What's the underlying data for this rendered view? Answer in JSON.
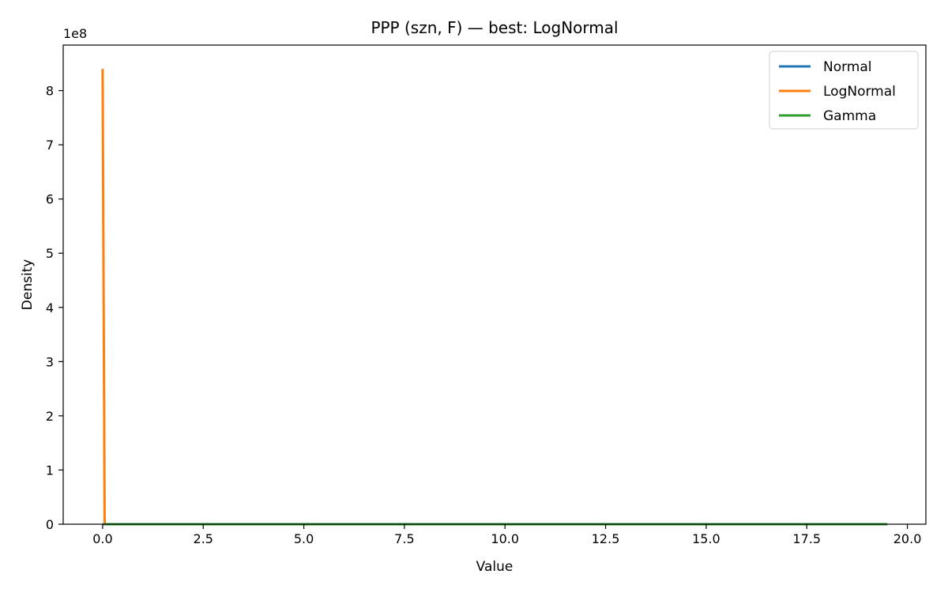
{
  "chart_data": {
    "type": "line",
    "title": "PPP (szn, F) — best: LogNormal",
    "xlabel": "Value",
    "ylabel": "Density",
    "y_offset_text": "1e8",
    "xlim": [
      -0.98,
      20.46
    ],
    "ylim": [
      0,
      884000000
    ],
    "x_ticks": [
      0.0,
      2.5,
      5.0,
      7.5,
      10.0,
      12.5,
      15.0,
      17.5,
      20.0
    ],
    "x_tick_labels": [
      "0.0",
      "2.5",
      "5.0",
      "7.5",
      "10.0",
      "12.5",
      "15.0",
      "17.5",
      "20.0"
    ],
    "y_ticks": [
      0,
      100000000,
      200000000,
      300000000,
      400000000,
      500000000,
      600000000,
      700000000,
      800000000
    ],
    "y_tick_labels": [
      "0",
      "1",
      "2",
      "3",
      "4",
      "5",
      "6",
      "7",
      "8"
    ],
    "grid": false,
    "legend_position": "top-right",
    "series": [
      {
        "name": "Normal",
        "color": "#1f77b4",
        "points": [
          [
            0.0,
            0
          ],
          [
            19.5,
            0
          ]
        ]
      },
      {
        "name": "LogNormal",
        "color": "#ff7f0e",
        "points": [
          [
            0.0,
            840000000
          ],
          [
            0.05,
            0
          ],
          [
            19.5,
            0
          ]
        ]
      },
      {
        "name": "Gamma",
        "color": "#2ca02c",
        "points": [
          [
            0.05,
            0
          ],
          [
            19.5,
            0
          ]
        ]
      }
    ]
  }
}
